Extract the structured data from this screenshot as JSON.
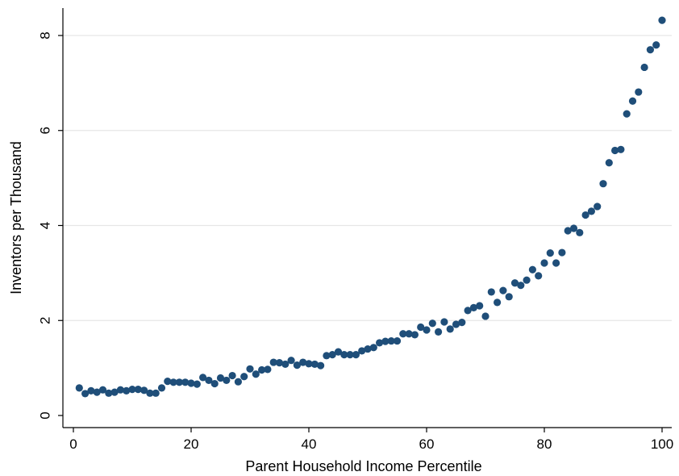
{
  "chart_data": {
    "type": "scatter",
    "title": "",
    "xlabel": "Parent Household Income Percentile",
    "ylabel": "Inventors per Thousand",
    "xlim": [
      0,
      100
    ],
    "ylim": [
      0,
      8.3
    ],
    "xticks": [
      0,
      20,
      40,
      60,
      80,
      100
    ],
    "yticks": [
      0,
      2,
      4,
      6,
      8
    ],
    "xtick_labels": [
      "0",
      "20",
      "40",
      "60",
      "80",
      "100"
    ],
    "ytick_labels": [
      "0",
      "2",
      "4",
      "6",
      "8"
    ],
    "grid": "horizontal",
    "marker_color": "#1f4e79",
    "series": [
      {
        "x": [
          1,
          2,
          3,
          4,
          5,
          6,
          7,
          8,
          9,
          10,
          11,
          12,
          13,
          14,
          15,
          16,
          17,
          18,
          19,
          20,
          21,
          22,
          23,
          24,
          25,
          26,
          27,
          28,
          29,
          30,
          31,
          32,
          33,
          34,
          35,
          36,
          37,
          38,
          39,
          40,
          41,
          42,
          43,
          44,
          45,
          46,
          47,
          48,
          49,
          50,
          51,
          52,
          53,
          54,
          55,
          56,
          57,
          58,
          59,
          60,
          61,
          62,
          63,
          64,
          65,
          66,
          67,
          68,
          69,
          70,
          71,
          72,
          73,
          74,
          75,
          76,
          77,
          78,
          79,
          80,
          81,
          82,
          83,
          84,
          85,
          86,
          87,
          88,
          89,
          90,
          91,
          92,
          93,
          94,
          95,
          96,
          97,
          98,
          99,
          100
        ],
        "y": [
          0.58,
          0.46,
          0.52,
          0.49,
          0.54,
          0.47,
          0.49,
          0.54,
          0.52,
          0.55,
          0.55,
          0.53,
          0.47,
          0.47,
          0.58,
          0.72,
          0.7,
          0.7,
          0.7,
          0.68,
          0.66,
          0.8,
          0.74,
          0.67,
          0.79,
          0.74,
          0.84,
          0.71,
          0.82,
          0.98,
          0.87,
          0.96,
          0.97,
          1.12,
          1.11,
          1.08,
          1.16,
          1.06,
          1.12,
          1.09,
          1.08,
          1.05,
          1.26,
          1.28,
          1.34,
          1.28,
          1.28,
          1.28,
          1.36,
          1.4,
          1.43,
          1.53,
          1.56,
          1.57,
          1.57,
          1.72,
          1.72,
          1.7,
          1.86,
          1.8,
          1.94,
          1.76,
          1.97,
          1.82,
          1.92,
          1.96,
          2.21,
          2.27,
          2.31,
          2.09,
          2.6,
          2.38,
          2.63,
          2.5,
          2.79,
          2.74,
          2.85,
          3.07,
          2.94,
          3.21,
          3.42,
          3.21,
          3.43,
          3.89,
          3.94,
          3.85,
          4.22,
          4.3,
          4.4,
          4.88,
          5.32,
          5.58,
          5.6,
          6.35,
          6.62,
          6.81,
          7.33,
          7.7,
          7.8,
          8.32
        ]
      }
    ]
  }
}
